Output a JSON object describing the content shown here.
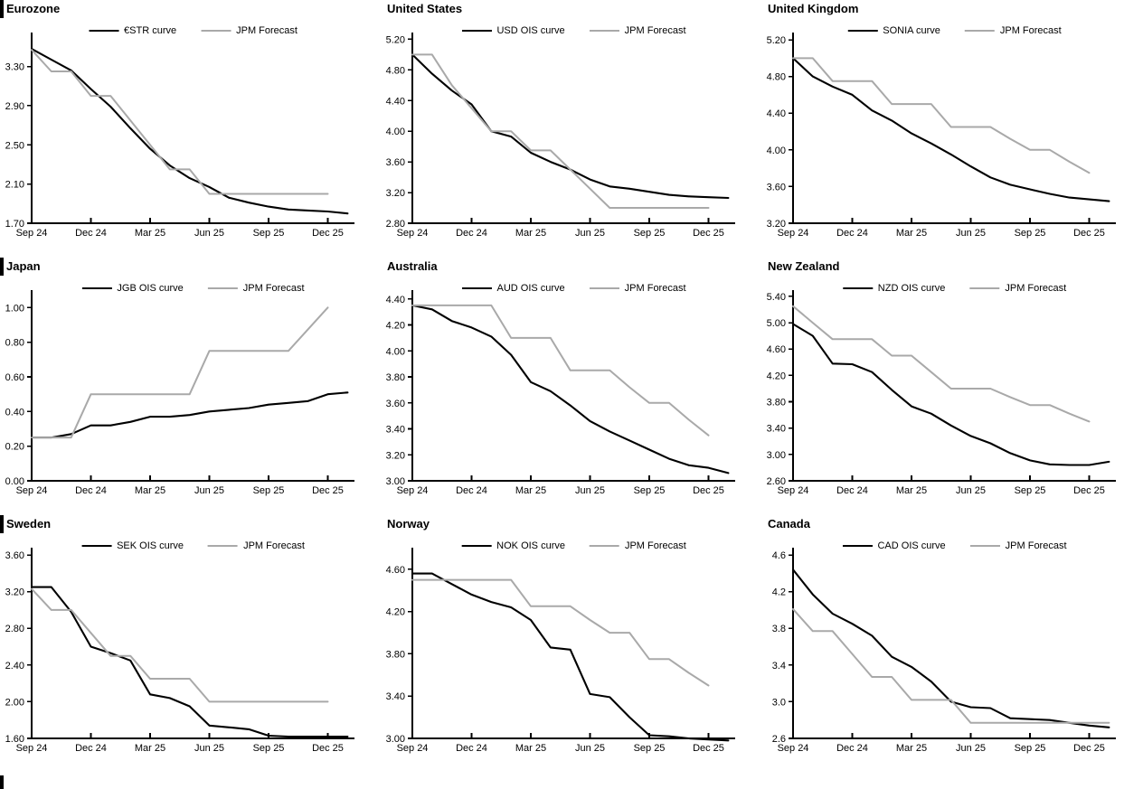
{
  "page": {
    "background": "#ffffff",
    "section_bar_color": "#000000",
    "curve_color": "#000000",
    "forecast_color": "#a9a9a9"
  },
  "chart_data": [
    {
      "title": "Eurozone",
      "type": "line",
      "section_bar": true,
      "ylim": [
        1.7,
        3.61
      ],
      "y_ticks": [
        {
          "v": 1.7,
          "label": "1.70"
        },
        {
          "v": 2.1,
          "label": "2.10"
        },
        {
          "v": 2.5,
          "label": "2.50"
        },
        {
          "v": 2.9,
          "label": "2.90"
        },
        {
          "v": 3.3,
          "label": "3.30"
        }
      ],
      "x_ticks": [
        {
          "pos": 0,
          "label": "Sep 24"
        },
        {
          "pos": 3,
          "label": "Dec 24"
        },
        {
          "pos": 6,
          "label": "Mar 25"
        },
        {
          "pos": 9,
          "label": "Jun 25"
        },
        {
          "pos": 12,
          "label": "Sep 25"
        },
        {
          "pos": 15,
          "label": "Dec 25"
        }
      ],
      "x_axis_max": 16.35,
      "x_unit": "months from Sep 2024",
      "legend_position": "top-center",
      "grid": false,
      "series": [
        {
          "name": "€STR curve",
          "color": "#000000",
          "stroke_width": 2.1,
          "values": [
            3.48,
            3.37,
            3.26,
            3.07,
            2.89,
            2.67,
            2.46,
            2.29,
            2.16,
            2.07,
            1.96,
            1.91,
            1.87,
            1.84,
            1.83,
            1.82,
            1.8
          ]
        },
        {
          "name": "JPM Forecast",
          "color": "#a9a9a9",
          "stroke_width": 2,
          "values": [
            3.47,
            3.25,
            3.25,
            3.0,
            3.0,
            2.75,
            2.5,
            2.25,
            2.25,
            2.0,
            2.0,
            2.0,
            2.0,
            2.0,
            2.0,
            2.0
          ]
        }
      ]
    },
    {
      "title": "United States",
      "type": "line",
      "section_bar": false,
      "ylim": [
        2.8,
        5.24
      ],
      "y_ticks": [
        {
          "v": 2.8,
          "label": "2.80"
        },
        {
          "v": 3.2,
          "label": "3.20"
        },
        {
          "v": 3.6,
          "label": "3.60"
        },
        {
          "v": 4.0,
          "label": "4.00"
        },
        {
          "v": 4.4,
          "label": "4.40"
        },
        {
          "v": 4.8,
          "label": "4.80"
        },
        {
          "v": 5.2,
          "label": "5.20"
        }
      ],
      "x_ticks": [
        {
          "pos": 0,
          "label": "Sep 24"
        },
        {
          "pos": 3,
          "label": "Dec 24"
        },
        {
          "pos": 6,
          "label": "Mar 25"
        },
        {
          "pos": 9,
          "label": "Jun 25"
        },
        {
          "pos": 12,
          "label": "Sep 25"
        },
        {
          "pos": 15,
          "label": "Dec 25"
        }
      ],
      "x_axis_max": 16.35,
      "x_unit": "months from Sep 2024",
      "legend_position": "top-center",
      "grid": false,
      "series": [
        {
          "name": "USD OIS curve",
          "color": "#000000",
          "stroke_width": 2.1,
          "values": [
            5.0,
            4.75,
            4.53,
            4.35,
            4.0,
            3.93,
            3.72,
            3.6,
            3.5,
            3.37,
            3.28,
            3.25,
            3.21,
            3.17,
            3.15,
            3.14,
            3.13
          ]
        },
        {
          "name": "JPM Forecast",
          "color": "#a9a9a9",
          "stroke_width": 2,
          "values": [
            5.0,
            5.0,
            4.6,
            4.3,
            4.0,
            4.0,
            3.75,
            3.75,
            3.5,
            3.25,
            3.0,
            3.0,
            3.0,
            3.0,
            3.0,
            3.0
          ]
        }
      ]
    },
    {
      "title": "United Kingdom",
      "type": "line",
      "section_bar": false,
      "ylim": [
        3.2,
        5.24
      ],
      "y_ticks": [
        {
          "v": 3.2,
          "label": "3.20"
        },
        {
          "v": 3.6,
          "label": "3.60"
        },
        {
          "v": 4.0,
          "label": "4.00"
        },
        {
          "v": 4.4,
          "label": "4.40"
        },
        {
          "v": 4.8,
          "label": "4.80"
        },
        {
          "v": 5.2,
          "label": "5.20"
        }
      ],
      "x_ticks": [
        {
          "pos": 0,
          "label": "Sep 24"
        },
        {
          "pos": 3,
          "label": "Dec 24"
        },
        {
          "pos": 6,
          "label": "Mar 25"
        },
        {
          "pos": 9,
          "label": "Jun 25"
        },
        {
          "pos": 12,
          "label": "Sep 25"
        },
        {
          "pos": 15,
          "label": "Dec 25"
        }
      ],
      "x_axis_max": 16.35,
      "x_unit": "months from Sep 2024",
      "legend_position": "top-center",
      "grid": false,
      "series": [
        {
          "name": "SONIA curve",
          "color": "#000000",
          "stroke_width": 2.1,
          "values": [
            5.0,
            4.8,
            4.69,
            4.6,
            4.43,
            4.32,
            4.18,
            4.07,
            3.95,
            3.82,
            3.7,
            3.62,
            3.57,
            3.52,
            3.48,
            3.46,
            3.44
          ]
        },
        {
          "name": "JPM Forecast",
          "color": "#a9a9a9",
          "stroke_width": 2,
          "values": [
            5.0,
            5.0,
            4.75,
            4.75,
            4.75,
            4.5,
            4.5,
            4.5,
            4.25,
            4.25,
            4.25,
            4.12,
            4.0,
            4.0,
            3.87,
            3.75
          ]
        }
      ]
    },
    {
      "title": "Japan",
      "type": "line",
      "section_bar": true,
      "ylim": [
        0.0,
        1.08
      ],
      "y_ticks": [
        {
          "v": 0.0,
          "label": "0.00"
        },
        {
          "v": 0.2,
          "label": "0.20"
        },
        {
          "v": 0.4,
          "label": "0.40"
        },
        {
          "v": 0.6,
          "label": "0.60"
        },
        {
          "v": 0.8,
          "label": "0.80"
        },
        {
          "v": 1.0,
          "label": "1.00"
        }
      ],
      "x_ticks": [
        {
          "pos": 0,
          "label": "Sep 24"
        },
        {
          "pos": 3,
          "label": "Dec 24"
        },
        {
          "pos": 6,
          "label": "Mar 25"
        },
        {
          "pos": 9,
          "label": "Jun 25"
        },
        {
          "pos": 12,
          "label": "Sep 25"
        },
        {
          "pos": 15,
          "label": "Dec 25"
        }
      ],
      "x_axis_max": 16.35,
      "x_unit": "months from Sep 2024",
      "legend_position": "top-center",
      "grid": false,
      "series": [
        {
          "name": "JGB OIS curve",
          "color": "#000000",
          "stroke_width": 2.1,
          "values": [
            0.25,
            0.25,
            0.27,
            0.32,
            0.32,
            0.34,
            0.37,
            0.37,
            0.38,
            0.4,
            0.41,
            0.42,
            0.44,
            0.45,
            0.46,
            0.5,
            0.51
          ]
        },
        {
          "name": "JPM Forecast",
          "color": "#a9a9a9",
          "stroke_width": 2,
          "values": [
            0.25,
            0.25,
            0.25,
            0.5,
            0.5,
            0.5,
            0.5,
            0.5,
            0.5,
            0.75,
            0.75,
            0.75,
            0.75,
            0.75,
            0.875,
            1.0
          ]
        }
      ]
    },
    {
      "title": "Australia",
      "type": "line",
      "section_bar": false,
      "ylim": [
        3.0,
        4.44
      ],
      "y_ticks": [
        {
          "v": 3.0,
          "label": "3.00"
        },
        {
          "v": 3.2,
          "label": "3.20"
        },
        {
          "v": 3.4,
          "label": "3.40"
        },
        {
          "v": 3.6,
          "label": "3.60"
        },
        {
          "v": 3.8,
          "label": "3.80"
        },
        {
          "v": 4.0,
          "label": "4.00"
        },
        {
          "v": 4.2,
          "label": "4.20"
        },
        {
          "v": 4.4,
          "label": "4.40"
        }
      ],
      "x_ticks": [
        {
          "pos": 0,
          "label": "Sep 24"
        },
        {
          "pos": 3,
          "label": "Dec 24"
        },
        {
          "pos": 6,
          "label": "Mar 25"
        },
        {
          "pos": 9,
          "label": "Jun 25"
        },
        {
          "pos": 12,
          "label": "Sep 25"
        },
        {
          "pos": 15,
          "label": "Dec 25"
        }
      ],
      "x_axis_max": 16.35,
      "x_unit": "months from Sep 2024",
      "legend_position": "top-center",
      "grid": false,
      "series": [
        {
          "name": "AUD OIS curve",
          "color": "#000000",
          "stroke_width": 2.1,
          "values": [
            4.35,
            4.32,
            4.23,
            4.18,
            4.11,
            3.97,
            3.76,
            3.69,
            3.58,
            3.46,
            3.38,
            3.31,
            3.24,
            3.17,
            3.12,
            3.1,
            3.06
          ]
        },
        {
          "name": "JPM Forecast",
          "color": "#a9a9a9",
          "stroke_width": 2,
          "values": [
            4.35,
            4.35,
            4.35,
            4.35,
            4.35,
            4.1,
            4.1,
            4.1,
            3.85,
            3.85,
            3.85,
            3.72,
            3.6,
            3.6,
            3.47,
            3.35
          ]
        }
      ]
    },
    {
      "title": "New Zealand",
      "type": "line",
      "section_bar": false,
      "ylim": [
        2.6,
        5.44
      ],
      "y_ticks": [
        {
          "v": 2.6,
          "label": "2.60"
        },
        {
          "v": 3.0,
          "label": "3.00"
        },
        {
          "v": 3.4,
          "label": "3.40"
        },
        {
          "v": 3.8,
          "label": "3.80"
        },
        {
          "v": 4.2,
          "label": "4.20"
        },
        {
          "v": 4.6,
          "label": "4.60"
        },
        {
          "v": 5.0,
          "label": "5.00"
        },
        {
          "v": 5.4,
          "label": "5.40"
        }
      ],
      "x_ticks": [
        {
          "pos": 0,
          "label": "Sep 24"
        },
        {
          "pos": 3,
          "label": "Dec 24"
        },
        {
          "pos": 6,
          "label": "Mar 25"
        },
        {
          "pos": 9,
          "label": "Jun 25"
        },
        {
          "pos": 12,
          "label": "Sep 25"
        },
        {
          "pos": 15,
          "label": "Dec 25"
        }
      ],
      "x_axis_max": 16.35,
      "x_unit": "months from Sep 2024",
      "legend_position": "top-center",
      "grid": false,
      "series": [
        {
          "name": "NZD OIS curve",
          "color": "#000000",
          "stroke_width": 2.1,
          "values": [
            4.98,
            4.8,
            4.38,
            4.37,
            4.25,
            3.98,
            3.73,
            3.62,
            3.44,
            3.28,
            3.17,
            3.02,
            2.91,
            2.85,
            2.84,
            2.84,
            2.89
          ]
        },
        {
          "name": "JPM Forecast",
          "color": "#a9a9a9",
          "stroke_width": 2,
          "values": [
            5.25,
            5.0,
            4.75,
            4.75,
            4.75,
            4.5,
            4.5,
            4.25,
            4.0,
            4.0,
            4.0,
            3.87,
            3.75,
            3.75,
            3.62,
            3.5
          ]
        }
      ]
    },
    {
      "title": "Sweden",
      "type": "line",
      "section_bar": true,
      "ylim": [
        1.6,
        3.64
      ],
      "y_ticks": [
        {
          "v": 1.6,
          "label": "1.60"
        },
        {
          "v": 2.0,
          "label": "2.00"
        },
        {
          "v": 2.4,
          "label": "2.40"
        },
        {
          "v": 2.8,
          "label": "2.80"
        },
        {
          "v": 3.2,
          "label": "3.20"
        },
        {
          "v": 3.6,
          "label": "3.60"
        }
      ],
      "x_ticks": [
        {
          "pos": 0,
          "label": "Sep 24"
        },
        {
          "pos": 3,
          "label": "Dec 24"
        },
        {
          "pos": 6,
          "label": "Mar 25"
        },
        {
          "pos": 9,
          "label": "Jun 25"
        },
        {
          "pos": 12,
          "label": "Sep 25"
        },
        {
          "pos": 15,
          "label": "Dec 25"
        }
      ],
      "x_axis_max": 16.35,
      "x_unit": "months from Sep 2024",
      "legend_position": "top-center",
      "grid": false,
      "series": [
        {
          "name": "SEK OIS curve",
          "color": "#000000",
          "stroke_width": 2.1,
          "values": [
            3.25,
            3.25,
            2.98,
            2.6,
            2.53,
            2.45,
            2.08,
            2.04,
            1.95,
            1.74,
            1.72,
            1.7,
            1.63,
            1.62,
            1.62,
            1.62,
            1.62
          ]
        },
        {
          "name": "JPM Forecast",
          "color": "#a9a9a9",
          "stroke_width": 2,
          "values": [
            3.23,
            3.0,
            3.0,
            2.75,
            2.5,
            2.5,
            2.25,
            2.25,
            2.25,
            2.0,
            2.0,
            2.0,
            2.0,
            2.0,
            2.0,
            2.0
          ]
        }
      ]
    },
    {
      "title": "Norway",
      "type": "line",
      "section_bar": false,
      "ylim": [
        3.0,
        4.77
      ],
      "y_ticks": [
        {
          "v": 3.0,
          "label": "3.00"
        },
        {
          "v": 3.4,
          "label": "3.40"
        },
        {
          "v": 3.8,
          "label": "3.80"
        },
        {
          "v": 4.2,
          "label": "4.20"
        },
        {
          "v": 4.6,
          "label": "4.60"
        }
      ],
      "x_ticks": [
        {
          "pos": 0,
          "label": "Sep 24"
        },
        {
          "pos": 3,
          "label": "Dec 24"
        },
        {
          "pos": 6,
          "label": "Mar 25"
        },
        {
          "pos": 9,
          "label": "Jun 25"
        },
        {
          "pos": 12,
          "label": "Sep 25"
        },
        {
          "pos": 15,
          "label": "Dec 25"
        }
      ],
      "x_axis_max": 16.35,
      "x_unit": "months from Sep 2024",
      "legend_position": "top-center",
      "grid": false,
      "series": [
        {
          "name": "NOK OIS curve",
          "color": "#000000",
          "stroke_width": 2.1,
          "values": [
            4.56,
            4.56,
            4.46,
            4.36,
            4.29,
            4.24,
            4.12,
            3.86,
            3.84,
            3.42,
            3.39,
            3.2,
            3.03,
            3.02,
            3.0,
            2.99,
            2.98
          ]
        },
        {
          "name": "JPM Forecast",
          "color": "#a9a9a9",
          "stroke_width": 2,
          "values": [
            4.5,
            4.5,
            4.5,
            4.5,
            4.5,
            4.5,
            4.25,
            4.25,
            4.25,
            4.12,
            4.0,
            4.0,
            3.75,
            3.75,
            3.62,
            3.5
          ]
        }
      ]
    },
    {
      "title": "Canada",
      "type": "line",
      "section_bar": false,
      "ylim": [
        2.6,
        4.64
      ],
      "y_ticks": [
        {
          "v": 2.6,
          "label": "2.6"
        },
        {
          "v": 3.0,
          "label": "3.0"
        },
        {
          "v": 3.4,
          "label": "3.4"
        },
        {
          "v": 3.8,
          "label": "3.8"
        },
        {
          "v": 4.2,
          "label": "4.2"
        },
        {
          "v": 4.6,
          "label": "4.6"
        }
      ],
      "x_ticks": [
        {
          "pos": 0,
          "label": "Sep 24"
        },
        {
          "pos": 3,
          "label": "Dec 24"
        },
        {
          "pos": 6,
          "label": "Mar 25"
        },
        {
          "pos": 9,
          "label": "Jun 25"
        },
        {
          "pos": 12,
          "label": "Sep 25"
        },
        {
          "pos": 15,
          "label": "Dec 25"
        }
      ],
      "x_axis_max": 16.35,
      "x_unit": "months from Sep 2024",
      "legend_position": "top-center",
      "grid": false,
      "series": [
        {
          "name": "CAD OIS curve",
          "color": "#000000",
          "stroke_width": 2.1,
          "values": [
            4.44,
            4.17,
            3.96,
            3.85,
            3.72,
            3.49,
            3.38,
            3.22,
            3.0,
            2.94,
            2.93,
            2.82,
            2.81,
            2.8,
            2.77,
            2.74,
            2.72
          ]
        },
        {
          "name": "JPM Forecast",
          "color": "#a9a9a9",
          "stroke_width": 2,
          "values": [
            4.01,
            3.77,
            3.77,
            3.52,
            3.27,
            3.27,
            3.02,
            3.02,
            3.02,
            2.77,
            2.77,
            2.77,
            2.77,
            2.77,
            2.77,
            2.77,
            2.77
          ]
        }
      ]
    }
  ]
}
